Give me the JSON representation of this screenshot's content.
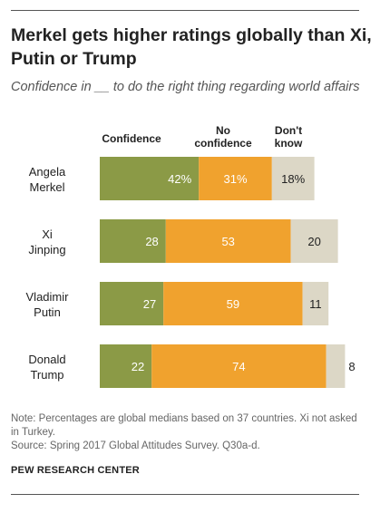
{
  "header": {
    "title": "Merkel gets higher ratings globally than Xi, Putin or Trump",
    "subtitle": "Confidence in __ to do the right thing regarding world affairs"
  },
  "colors": {
    "confidence": "#8b9a46",
    "no_confidence": "#f0a22e",
    "dont_know": "#dcd7c6"
  },
  "chart_data": {
    "type": "bar",
    "orientation": "horizontal",
    "stacked": true,
    "categories": [
      "Angela Merkel",
      "Xi Jinping",
      "Vladimir Putin",
      "Donald Trump"
    ],
    "category_lines": [
      [
        "Angela",
        "Merkel"
      ],
      [
        "Xi",
        "Jinping"
      ],
      [
        "Vladimir",
        "Putin"
      ],
      [
        "Donald",
        "Trump"
      ]
    ],
    "series": [
      {
        "name": "Confidence",
        "values": [
          42,
          28,
          27,
          22
        ],
        "labels": [
          "42%",
          "28",
          "27",
          "22"
        ]
      },
      {
        "name": "No confidence",
        "values": [
          31,
          53,
          59,
          74
        ],
        "labels": [
          "31%",
          "53",
          "59",
          "74"
        ]
      },
      {
        "name": "Don't know",
        "values": [
          18,
          20,
          11,
          8
        ],
        "labels": [
          "18%",
          "20",
          "11",
          "8"
        ]
      }
    ],
    "legend_position": "top",
    "xlim": [
      0,
      104
    ]
  },
  "footer": {
    "note": "Note: Percentages are global medians based on 37 countries. Xi not asked in Turkey.",
    "source": "Source: Spring 2017 Global Attitudes Survey. Q30a-d.",
    "brand": "PEW RESEARCH CENTER"
  }
}
